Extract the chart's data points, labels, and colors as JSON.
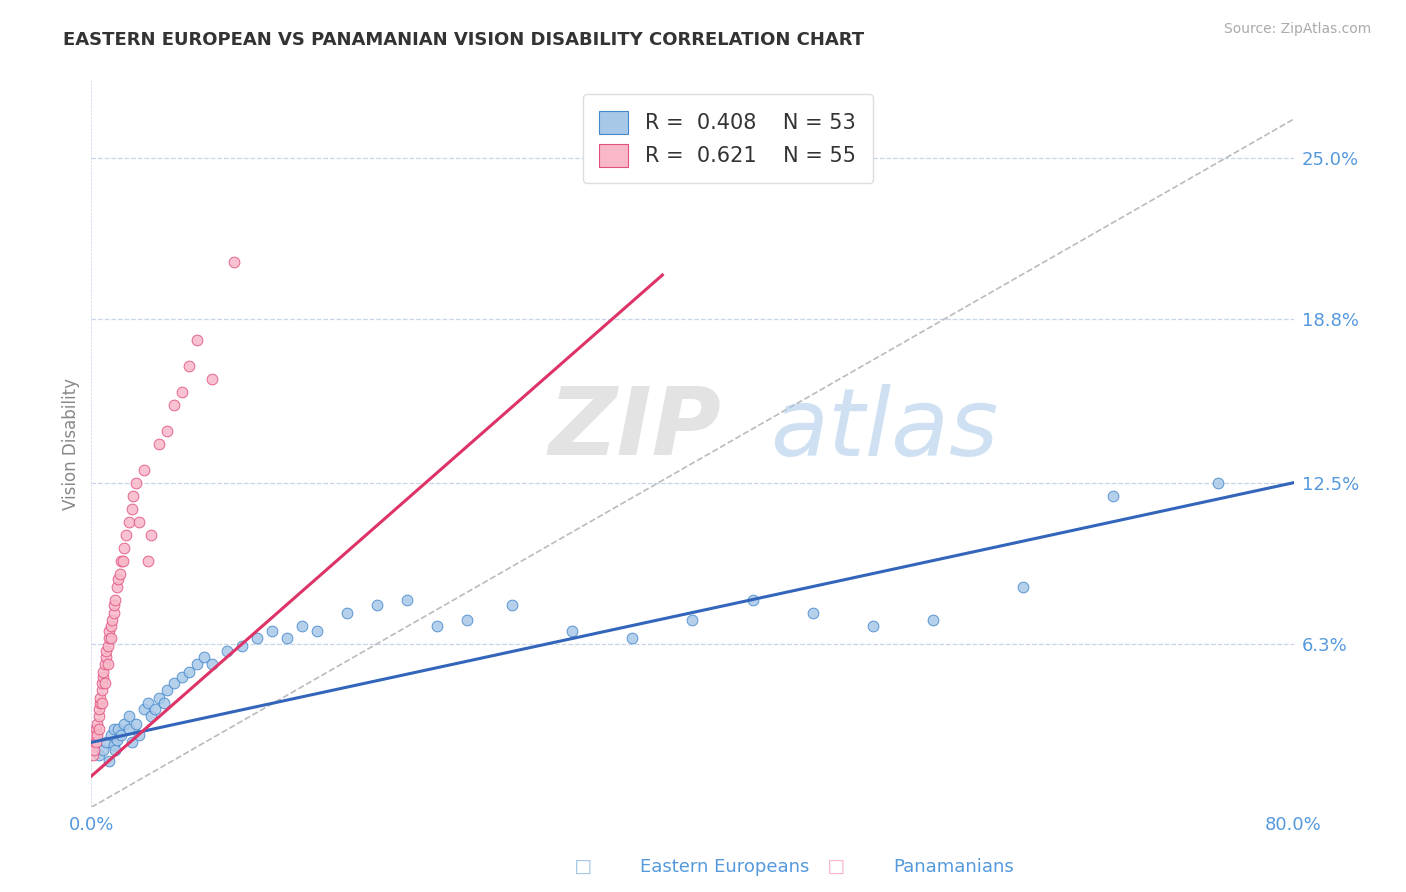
{
  "title": "EASTERN EUROPEAN VS PANAMANIAN VISION DISABILITY CORRELATION CHART",
  "source": "Source: ZipAtlas.com",
  "ylabel": "Vision Disability",
  "watermark": "ZIPatlas",
  "xlim": [
    0,
    0.8
  ],
  "ylim": [
    0,
    0.28
  ],
  "yticks_right": [
    0.063,
    0.125,
    0.188,
    0.25
  ],
  "yticklabels_right": [
    "6.3%",
    "12.5%",
    "18.8%",
    "25.0%"
  ],
  "eastern_european_fill": "#a8c8e8",
  "eastern_european_edge": "#4488cc",
  "panamanian_fill": "#f8b8c8",
  "panamanian_edge": "#e05080",
  "eastern_line_color": "#3366bb",
  "panamanian_line_color": "#dd3366",
  "reference_line_color": "#bbbbbb",
  "grid_color": "#c8d4e8",
  "R_eastern": 0.408,
  "N_eastern": 53,
  "R_panamanian": 0.621,
  "N_panamanian": 55,
  "background_color": "#ffffff",
  "title_color": "#333333",
  "label_color": "#5599dd",
  "eastern_scatter_x": [
    0.005,
    0.008,
    0.01,
    0.012,
    0.013,
    0.015,
    0.015,
    0.016,
    0.017,
    0.018,
    0.02,
    0.022,
    0.025,
    0.025,
    0.027,
    0.03,
    0.032,
    0.035,
    0.038,
    0.04,
    0.042,
    0.045,
    0.048,
    0.05,
    0.055,
    0.06,
    0.065,
    0.07,
    0.075,
    0.08,
    0.09,
    0.1,
    0.11,
    0.12,
    0.13,
    0.14,
    0.15,
    0.17,
    0.19,
    0.21,
    0.23,
    0.25,
    0.28,
    0.32,
    0.36,
    0.4,
    0.44,
    0.48,
    0.52,
    0.56,
    0.62,
    0.68,
    0.75
  ],
  "eastern_scatter_y": [
    0.02,
    0.022,
    0.025,
    0.018,
    0.028,
    0.024,
    0.03,
    0.022,
    0.026,
    0.03,
    0.028,
    0.032,
    0.03,
    0.035,
    0.025,
    0.032,
    0.028,
    0.038,
    0.04,
    0.035,
    0.038,
    0.042,
    0.04,
    0.045,
    0.048,
    0.05,
    0.052,
    0.055,
    0.058,
    0.055,
    0.06,
    0.062,
    0.065,
    0.068,
    0.065,
    0.07,
    0.068,
    0.075,
    0.078,
    0.08,
    0.07,
    0.072,
    0.078,
    0.068,
    0.065,
    0.072,
    0.08,
    0.075,
    0.07,
    0.072,
    0.085,
    0.12,
    0.125
  ],
  "panamanian_scatter_x": [
    0.001,
    0.001,
    0.002,
    0.002,
    0.003,
    0.003,
    0.004,
    0.004,
    0.005,
    0.005,
    0.005,
    0.006,
    0.006,
    0.007,
    0.007,
    0.007,
    0.008,
    0.008,
    0.009,
    0.009,
    0.01,
    0.01,
    0.011,
    0.011,
    0.012,
    0.012,
    0.013,
    0.013,
    0.014,
    0.015,
    0.015,
    0.016,
    0.017,
    0.018,
    0.019,
    0.02,
    0.021,
    0.022,
    0.023,
    0.025,
    0.027,
    0.028,
    0.03,
    0.032,
    0.035,
    0.038,
    0.04,
    0.045,
    0.05,
    0.055,
    0.06,
    0.065,
    0.07,
    0.08,
    0.095
  ],
  "panamanian_scatter_y": [
    0.02,
    0.025,
    0.022,
    0.028,
    0.025,
    0.03,
    0.028,
    0.032,
    0.03,
    0.035,
    0.038,
    0.04,
    0.042,
    0.045,
    0.04,
    0.048,
    0.05,
    0.052,
    0.048,
    0.055,
    0.058,
    0.06,
    0.062,
    0.055,
    0.065,
    0.068,
    0.07,
    0.065,
    0.072,
    0.075,
    0.078,
    0.08,
    0.085,
    0.088,
    0.09,
    0.095,
    0.095,
    0.1,
    0.105,
    0.11,
    0.115,
    0.12,
    0.125,
    0.11,
    0.13,
    0.095,
    0.105,
    0.14,
    0.145,
    0.155,
    0.16,
    0.17,
    0.18,
    0.165,
    0.21
  ],
  "eastern_line_x": [
    0.0,
    0.8
  ],
  "eastern_line_y": [
    0.025,
    0.125
  ],
  "panamanian_line_x": [
    0.0,
    0.38
  ],
  "panamanian_line_y": [
    0.012,
    0.205
  ],
  "ref_line_x": [
    0.0,
    0.8
  ],
  "ref_line_y": [
    0.0,
    0.265
  ]
}
